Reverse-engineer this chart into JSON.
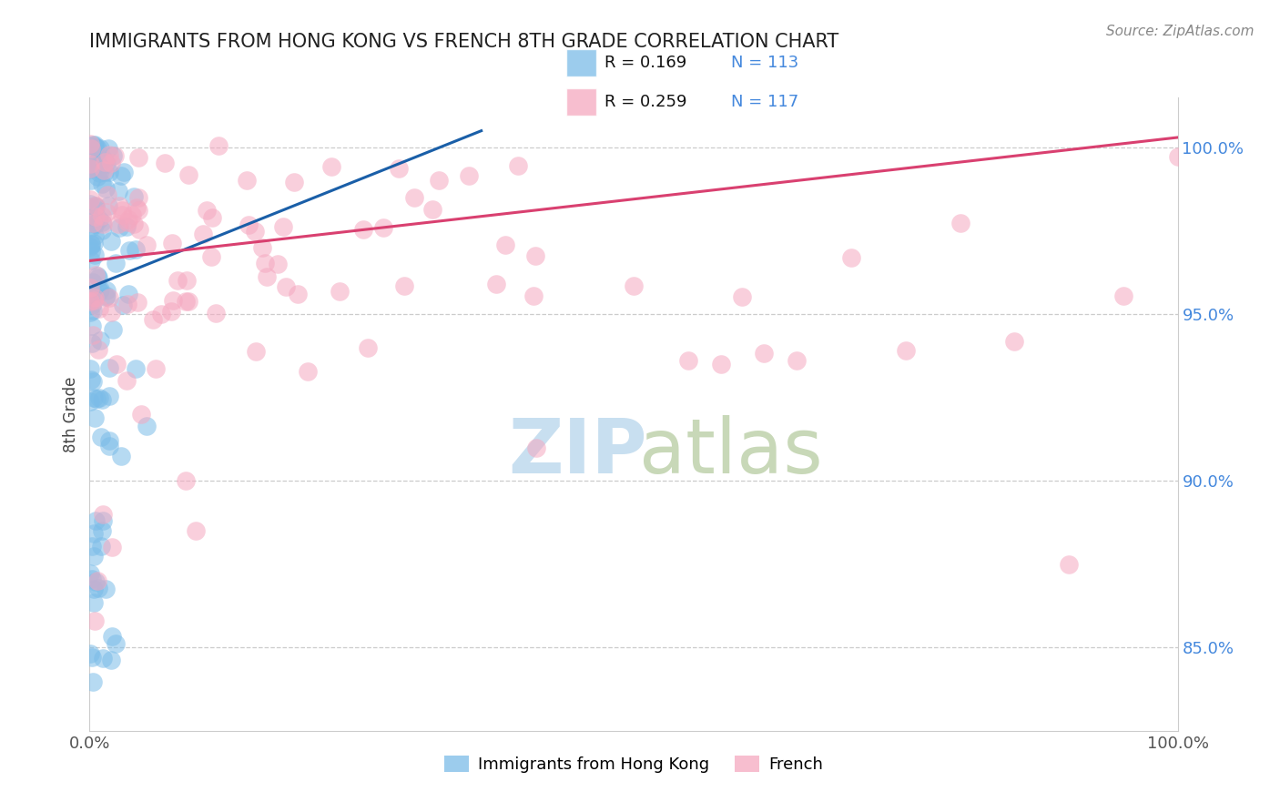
{
  "title": "IMMIGRANTS FROM HONG KONG VS FRENCH 8TH GRADE CORRELATION CHART",
  "source_text": "Source: ZipAtlas.com",
  "ylabel": "8th Grade",
  "legend_label_blue": "Immigrants from Hong Kong",
  "legend_label_pink": "French",
  "R_blue": 0.169,
  "N_blue": 113,
  "R_pink": 0.259,
  "N_pink": 117,
  "blue_color": "#7bbce8",
  "pink_color": "#f5a8c0",
  "blue_line_color": "#1a5fa8",
  "pink_line_color": "#d94070",
  "xmin": 0.0,
  "xmax": 1.0,
  "ymin": 0.825,
  "ymax": 1.015,
  "yticks": [
    0.85,
    0.9,
    0.95,
    1.0
  ],
  "ytick_labels": [
    "85.0%",
    "90.0%",
    "95.0%",
    "100.0%"
  ],
  "title_color": "#222222",
  "title_fontsize": 15,
  "source_color": "#888888",
  "tick_color_y": "#4488dd",
  "tick_color_x": "#555555",
  "grid_color": "#cccccc",
  "watermark_zip_color": "#c8dff0",
  "watermark_atlas_color": "#c8d8b8"
}
